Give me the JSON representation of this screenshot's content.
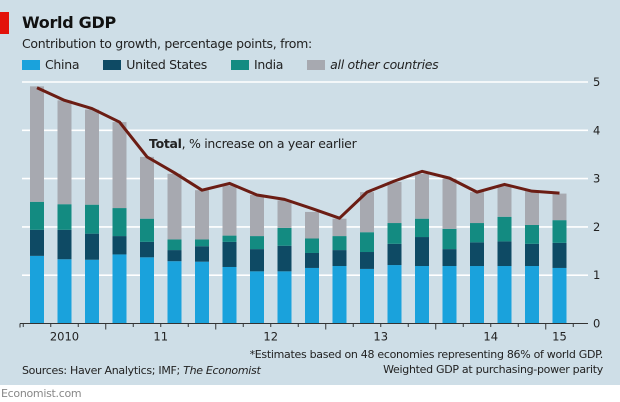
{
  "title": "World GDP",
  "subtitle": "Contribution to growth, percentage points, from:",
  "legend": [
    {
      "label": "China",
      "color": "#1aa2dc"
    },
    {
      "label": "United States",
      "color": "#0e4a64"
    },
    {
      "label": "India",
      "color": "#138b81"
    },
    {
      "label": "all other countries",
      "color": "#a7a9b0"
    }
  ],
  "sources": "Sources: Haver Analytics; IMF; ",
  "sources_italic": "The Economist",
  "note_line1": "*Estimates based on 48 economies representing 86% of world GDP.",
  "note_line2": "Weighted GDP at purchasing-power parity",
  "brand": "Economist.com",
  "chart_data": {
    "type": "bar",
    "stacked": true,
    "ylim": [
      0,
      5
    ],
    "yticks": [
      "0",
      "1",
      "2",
      "3",
      "4",
      "5"
    ],
    "grid": true,
    "x_tick_labels": [
      {
        "label": "2010",
        "bar_indices": [
          0,
          2
        ]
      },
      {
        "label": "11",
        "bar_indices": [
          3,
          6
        ]
      },
      {
        "label": "12",
        "bar_indices": [
          7,
          10
        ]
      },
      {
        "label": "13",
        "bar_indices": [
          11,
          14
        ]
      },
      {
        "label": "14",
        "bar_indices": [
          15,
          18
        ]
      },
      {
        "label": "15",
        "bar_indices": [
          19,
          19
        ]
      }
    ],
    "series": [
      {
        "name": "China",
        "color": "#1aa2dc",
        "values": [
          1.4,
          1.33,
          1.32,
          1.43,
          1.37,
          1.29,
          1.28,
          1.17,
          1.08,
          1.08,
          1.15,
          1.19,
          1.13,
          1.21,
          1.19,
          1.19,
          1.19,
          1.19,
          1.19,
          1.15
        ]
      },
      {
        "name": "United States",
        "color": "#0e4a64",
        "values": [
          0.54,
          0.61,
          0.54,
          0.38,
          0.32,
          0.23,
          0.32,
          0.52,
          0.46,
          0.53,
          0.31,
          0.33,
          0.35,
          0.44,
          0.6,
          0.35,
          0.49,
          0.51,
          0.46,
          0.52
        ]
      },
      {
        "name": "India",
        "color": "#138b81",
        "values": [
          0.58,
          0.53,
          0.6,
          0.58,
          0.48,
          0.22,
          0.14,
          0.13,
          0.27,
          0.37,
          0.3,
          0.29,
          0.41,
          0.43,
          0.38,
          0.42,
          0.4,
          0.51,
          0.39,
          0.47
        ]
      },
      {
        "name": "all other countries",
        "color": "#a7a9b0",
        "values": [
          2.39,
          2.15,
          1.97,
          1.78,
          1.28,
          1.36,
          1.02,
          1.04,
          0.85,
          0.57,
          0.55,
          0.36,
          0.83,
          0.85,
          0.93,
          1.04,
          0.64,
          0.65,
          0.72,
          0.55
        ]
      }
    ],
    "line": {
      "label_bold": "Total",
      "label_rest": ", % increase on a year earlier",
      "color": "#6b1d14",
      "values": [
        4.88,
        4.62,
        4.45,
        4.17,
        3.45,
        3.12,
        2.76,
        2.9,
        2.66,
        2.57,
        2.38,
        2.18,
        2.72,
        2.95,
        3.15,
        3.01,
        2.72,
        2.88,
        2.74,
        2.7
      ]
    }
  }
}
